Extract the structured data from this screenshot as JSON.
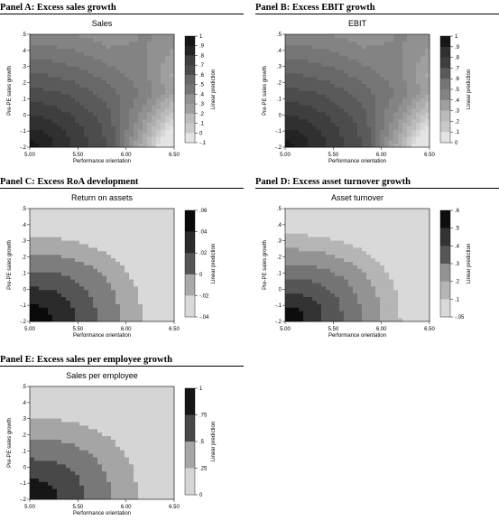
{
  "chart_data": [
    {
      "type": "heatmap",
      "panel_title": "Panel A: Excess sales growth",
      "title": "Sales",
      "xlabel": "Performance orientation",
      "ylabel": "Pre-PE sales growth",
      "colorbar_label": "Linear prediction",
      "xlim": [
        5.0,
        6.5
      ],
      "ylim": [
        -0.2,
        0.5
      ],
      "x_ticks": [
        "5.00",
        "5.50",
        "6.00",
        "6.50"
      ],
      "y_ticks": [
        ".5",
        ".4",
        ".3",
        ".2",
        ".1",
        "0",
        "-.1",
        "-.2"
      ],
      "colorbar_ticks": [
        "1",
        ".9",
        ".8",
        ".7",
        ".6",
        ".5",
        ".4",
        ".3",
        ".2",
        ".1",
        "0",
        "-.1"
      ],
      "contour_levels": [
        -0.1,
        0.0,
        0.1,
        0.2,
        0.3,
        0.4,
        0.5,
        0.6,
        0.7,
        0.8,
        0.9,
        1.0
      ],
      "surface": "saddle",
      "colors": [
        "#e4e4e4",
        "#d7d7d7",
        "#c9c9c9",
        "#bbbbbb",
        "#adadad",
        "#9f9f9f",
        "#919191",
        "#838383",
        "#767676",
        "#686868",
        "#5a5a5a",
        "#4c4c4c",
        "#3e3e3e",
        "#303030",
        "#232323",
        "#161616"
      ]
    },
    {
      "type": "heatmap",
      "panel_title": "Panel B: Excess EBIT growth",
      "title": "EBIT",
      "xlabel": "Performance orientation",
      "ylabel": "Pre-PE sales growth",
      "colorbar_label": "Linear prediction",
      "xlim": [
        5.0,
        6.5
      ],
      "ylim": [
        -0.2,
        0.5
      ],
      "x_ticks": [
        "5.00",
        "5.50",
        "6.00",
        "6.50"
      ],
      "y_ticks": [
        ".5",
        ".4",
        ".3",
        ".2",
        ".1",
        "0",
        "-.1",
        "-.2"
      ],
      "colorbar_ticks": [
        "1",
        ".9",
        ".8",
        ".7",
        ".6",
        ".5",
        ".4",
        ".3",
        ".2",
        ".1",
        "0"
      ],
      "contour_levels": [
        0.0,
        0.1,
        0.2,
        0.3,
        0.4,
        0.5,
        0.6,
        0.7,
        0.8,
        0.9,
        1.0
      ],
      "surface": "saddle",
      "colors": [
        "#e4e4e4",
        "#d7d7d7",
        "#c9c9c9",
        "#bbbbbb",
        "#adadad",
        "#9f9f9f",
        "#919191",
        "#838383",
        "#767676",
        "#686868",
        "#5a5a5a",
        "#4c4c4c",
        "#3e3e3e",
        "#303030",
        "#232323",
        "#161616"
      ]
    },
    {
      "type": "heatmap",
      "panel_title": "Panel C: Excess RoA development",
      "title": "Return on assets",
      "xlabel": "Performance orientation",
      "ylabel": "Pre-PE sales growth",
      "colorbar_label": "Linear prediction",
      "xlim": [
        5.0,
        6.5
      ],
      "ylim": [
        -0.2,
        0.5
      ],
      "x_ticks": [
        "5.00",
        "5.50",
        "6.00",
        "6.50"
      ],
      "y_ticks": [
        ".5",
        ".4",
        ".3",
        ".2",
        ".1",
        "0",
        "-.1",
        "-.2"
      ],
      "colorbar_ticks": [
        ".06",
        ".04",
        ".02",
        "0",
        "-.02",
        "-.04"
      ],
      "contour_levels": [
        -0.04,
        -0.02,
        0.0,
        0.02,
        0.04,
        0.06
      ],
      "surface": "corner",
      "colors": [
        "#d9d9d9",
        "#a9a9a9",
        "#7d7d7d",
        "#555555",
        "#2b2b2b",
        "#0a0a0a"
      ]
    },
    {
      "type": "heatmap",
      "panel_title": "Panel D: Excess asset turnover growth",
      "title": "Asset turnover",
      "xlabel": "Performance orientation",
      "ylabel": "Pre-PE sales growth",
      "colorbar_label": "Linear prediction",
      "xlim": [
        5.0,
        6.5
      ],
      "ylim": [
        -0.2,
        0.5
      ],
      "x_ticks": [
        "5.00",
        "5.50",
        "6.00",
        "6.50"
      ],
      "y_ticks": [
        ".5",
        ".4",
        ".3",
        ".2",
        ".1",
        "0",
        "-.1",
        "-.2"
      ],
      "colorbar_ticks": [
        ".6",
        ".5",
        ".4",
        ".3",
        ".2",
        ".1",
        "-.05"
      ],
      "contour_levels": [
        -0.05,
        0.1,
        0.2,
        0.3,
        0.4,
        0.5,
        0.6
      ],
      "surface": "corner",
      "colors": [
        "#d9d9d9",
        "#b5b5b5",
        "#939393",
        "#747474",
        "#565656",
        "#333333",
        "#0d0d0d"
      ]
    },
    {
      "type": "heatmap",
      "panel_title": "Panel E: Excess sales per employee growth",
      "title": "Sales per employee",
      "xlabel": "Performance orientation",
      "ylabel": "Pre-PE sales growth",
      "colorbar_label": "Linear prediction",
      "xlim": [
        5.0,
        6.5
      ],
      "ylim": [
        -0.2,
        0.5
      ],
      "x_ticks": [
        "5.00",
        "5.50",
        "6.00",
        "6.50"
      ],
      "y_ticks": [
        ".5",
        ".4",
        ".3",
        ".2",
        ".1",
        "0",
        "-.1",
        "-.2"
      ],
      "colorbar_ticks": [
        "1",
        ".75",
        ".5",
        ".25",
        "0"
      ],
      "contour_levels": [
        0.0,
        0.25,
        0.5,
        0.75,
        1.0
      ],
      "surface": "corner",
      "colors": [
        "#d5d5d5",
        "#a5a5a5",
        "#787878",
        "#484848",
        "#161616"
      ]
    }
  ]
}
